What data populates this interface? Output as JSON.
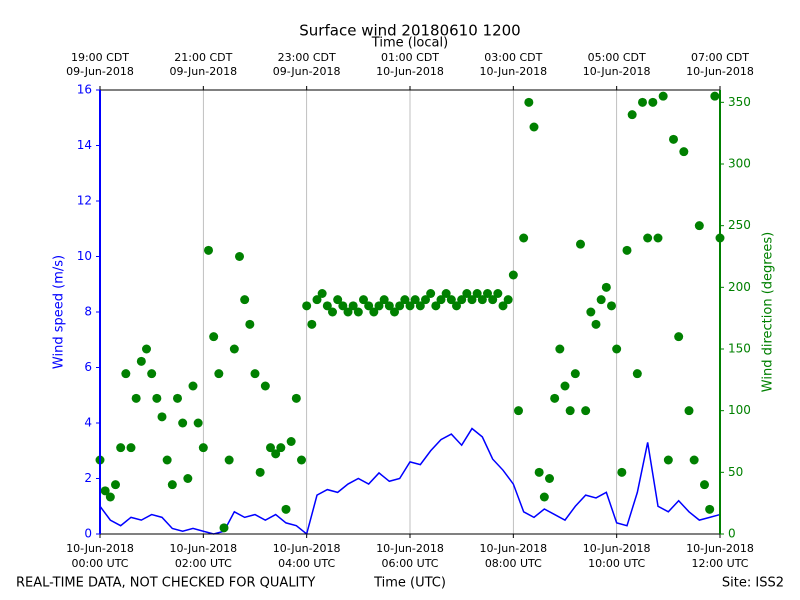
{
  "chart_data": {
    "type": "line",
    "title": "Surface wind 20180610 1200",
    "xlabel": "Time (UTC)",
    "x2label": "Time (local)",
    "ylabel": "Wind speed (m/s)",
    "y2label": "Wind direction (degrees)",
    "footer_left": "REAL-TIME DATA, NOT CHECKED FOR QUALITY",
    "footer_right": "Site: ISS2",
    "xlim": [
      0,
      12
    ],
    "xticks": [
      {
        "value": 0,
        "label": [
          "10-Jun-2018",
          "00:00 UTC"
        ]
      },
      {
        "value": 2,
        "label": [
          "10-Jun-2018",
          "02:00 UTC"
        ]
      },
      {
        "value": 4,
        "label": [
          "10-Jun-2018",
          "04:00 UTC"
        ]
      },
      {
        "value": 6,
        "label": [
          "10-Jun-2018",
          "06:00 UTC"
        ]
      },
      {
        "value": 8,
        "label": [
          "10-Jun-2018",
          "08:00 UTC"
        ]
      },
      {
        "value": 10,
        "label": [
          "10-Jun-2018",
          "10:00 UTC"
        ]
      },
      {
        "value": 12,
        "label": [
          "10-Jun-2018",
          "12:00 UTC"
        ]
      }
    ],
    "x2ticks": [
      {
        "value": 0,
        "label": [
          "19:00 CDT",
          "09-Jun-2018"
        ]
      },
      {
        "value": 2,
        "label": [
          "21:00 CDT",
          "09-Jun-2018"
        ]
      },
      {
        "value": 4,
        "label": [
          "23:00 CDT",
          "09-Jun-2018"
        ]
      },
      {
        "value": 6,
        "label": [
          "01:00 CDT",
          "10-Jun-2018"
        ]
      },
      {
        "value": 8,
        "label": [
          "03:00 CDT",
          "10-Jun-2018"
        ]
      },
      {
        "value": 10,
        "label": [
          "05:00 CDT",
          "10-Jun-2018"
        ]
      },
      {
        "value": 12,
        "label": [
          "07:00 CDT",
          "10-Jun-2018"
        ]
      }
    ],
    "ylim": [
      0,
      16
    ],
    "yticks": [
      0,
      2,
      4,
      6,
      8,
      10,
      12,
      14,
      16
    ],
    "y2lim": [
      0,
      360
    ],
    "y2ticks": [
      0,
      50,
      100,
      150,
      200,
      250,
      300,
      350
    ],
    "grid": true,
    "y_color": "#0000ff",
    "y2_color": "#008000",
    "series": [
      {
        "type": "line",
        "axis": "y",
        "color": "#0000ff",
        "x": [
          0,
          0.2,
          0.4,
          0.6,
          0.8,
          1,
          1.2,
          1.4,
          1.6,
          1.8,
          2,
          2.2,
          2.4,
          2.6,
          2.8,
          3,
          3.2,
          3.4,
          3.6,
          3.8,
          4,
          4.2,
          4.4,
          4.6,
          4.8,
          5,
          5.2,
          5.4,
          5.6,
          5.8,
          6,
          6.2,
          6.4,
          6.6,
          6.8,
          7,
          7.2,
          7.4,
          7.6,
          7.8,
          8,
          8.2,
          8.4,
          8.6,
          8.8,
          9,
          9.2,
          9.4,
          9.6,
          9.8,
          10,
          10.2,
          10.4,
          10.6,
          10.8,
          11,
          11.2,
          11.4,
          11.6,
          11.8,
          12
        ],
        "values": [
          1.0,
          0.5,
          0.3,
          0.6,
          0.5,
          0.7,
          0.6,
          0.2,
          0.1,
          0.2,
          0.1,
          0.0,
          0.1,
          0.8,
          0.6,
          0.7,
          0.5,
          0.7,
          0.4,
          0.3,
          0.0,
          1.4,
          1.6,
          1.5,
          1.8,
          2.0,
          1.8,
          2.2,
          1.9,
          2.0,
          2.6,
          2.5,
          3.0,
          3.4,
          3.6,
          3.2,
          3.8,
          3.5,
          2.7,
          2.3,
          1.8,
          0.8,
          0.6,
          0.9,
          0.7,
          0.5,
          1.0,
          1.4,
          1.3,
          1.5,
          0.4,
          0.3,
          1.5,
          3.3,
          1.0,
          0.8,
          1.2,
          0.8,
          0.5,
          0.6,
          0.7
        ]
      },
      {
        "type": "scatter",
        "axis": "y2",
        "color": "#008000",
        "x": [
          0,
          0.1,
          0.2,
          0.3,
          0.4,
          0.5,
          0.6,
          0.7,
          0.8,
          0.9,
          1,
          1.1,
          1.2,
          1.3,
          1.4,
          1.5,
          1.6,
          1.7,
          1.8,
          1.9,
          2,
          2.1,
          2.2,
          2.3,
          2.4,
          2.5,
          2.6,
          2.7,
          2.8,
          2.9,
          3,
          3.1,
          3.2,
          3.3,
          3.4,
          3.5,
          3.6,
          3.7,
          3.8,
          3.9,
          4,
          4.1,
          4.2,
          4.3,
          4.4,
          4.5,
          4.6,
          4.7,
          4.8,
          4.9,
          5,
          5.1,
          5.2,
          5.3,
          5.4,
          5.5,
          5.6,
          5.7,
          5.8,
          5.9,
          6,
          6.1,
          6.2,
          6.3,
          6.4,
          6.5,
          6.6,
          6.7,
          6.8,
          6.9,
          7,
          7.1,
          7.2,
          7.3,
          7.4,
          7.5,
          7.6,
          7.7,
          7.8,
          7.9,
          8,
          8.1,
          8.2,
          8.3,
          8.4,
          8.5,
          8.6,
          8.7,
          8.8,
          8.9,
          9,
          9.1,
          9.2,
          9.3,
          9.4,
          9.5,
          9.6,
          9.7,
          9.8,
          9.9,
          10,
          10.1,
          10.2,
          10.3,
          10.4,
          10.5,
          10.6,
          10.7,
          10.8,
          10.9,
          11,
          11.1,
          11.2,
          11.3,
          11.4,
          11.5,
          11.6,
          11.7,
          11.8,
          11.9,
          12
        ],
        "values": [
          60,
          35,
          30,
          40,
          70,
          130,
          70,
          110,
          140,
          150,
          130,
          110,
          95,
          60,
          40,
          110,
          90,
          45,
          120,
          90,
          70,
          230,
          160,
          130,
          5,
          60,
          150,
          225,
          190,
          170,
          130,
          50,
          120,
          70,
          65,
          70,
          20,
          75,
          110,
          60,
          185,
          170,
          190,
          195,
          185,
          180,
          190,
          185,
          180,
          185,
          180,
          190,
          185,
          180,
          185,
          190,
          185,
          180,
          185,
          190,
          185,
          190,
          185,
          190,
          195,
          185,
          190,
          195,
          190,
          185,
          190,
          195,
          190,
          195,
          190,
          195,
          190,
          195,
          185,
          190,
          210,
          100,
          240,
          350,
          330,
          50,
          30,
          45,
          110,
          150,
          120,
          100,
          130,
          235,
          100,
          180,
          170,
          190,
          200,
          185,
          150,
          50,
          230,
          340,
          130,
          350,
          240,
          350,
          240,
          355,
          60,
          320,
          160,
          310,
          100,
          60,
          250,
          40,
          20,
          355,
          240
        ]
      }
    ]
  }
}
